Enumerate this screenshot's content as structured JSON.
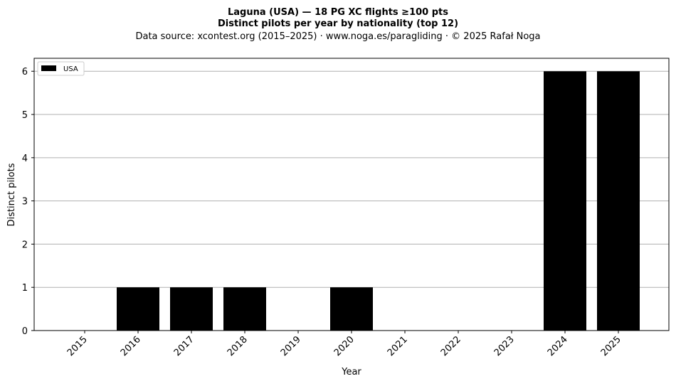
{
  "chart_data": {
    "type": "bar",
    "title_line1": "Laguna (USA)  —  18 PG XC flights ≥100 pts",
    "title_line2": "Distinct pilots per year by nationality (top 12)",
    "subtitle": "Data source: xcontest.org (2015–2025)  ·  www.noga.es/paragliding  ·  © 2025 Rafał Noga",
    "xlabel": "Year",
    "ylabel": "Distinct pilots",
    "categories": [
      "2015",
      "2016",
      "2017",
      "2018",
      "2019",
      "2020",
      "2021",
      "2022",
      "2023",
      "2024",
      "2025"
    ],
    "series": [
      {
        "name": "USA",
        "color": "#000000",
        "values": [
          0,
          1,
          1,
          1,
          0,
          1,
          0,
          0,
          0,
          6,
          6
        ]
      }
    ],
    "ylim": [
      0,
      6.3
    ],
    "yticks": [
      0,
      1,
      2,
      3,
      4,
      5,
      6
    ],
    "grid": "y",
    "legend_position": "top-left"
  }
}
